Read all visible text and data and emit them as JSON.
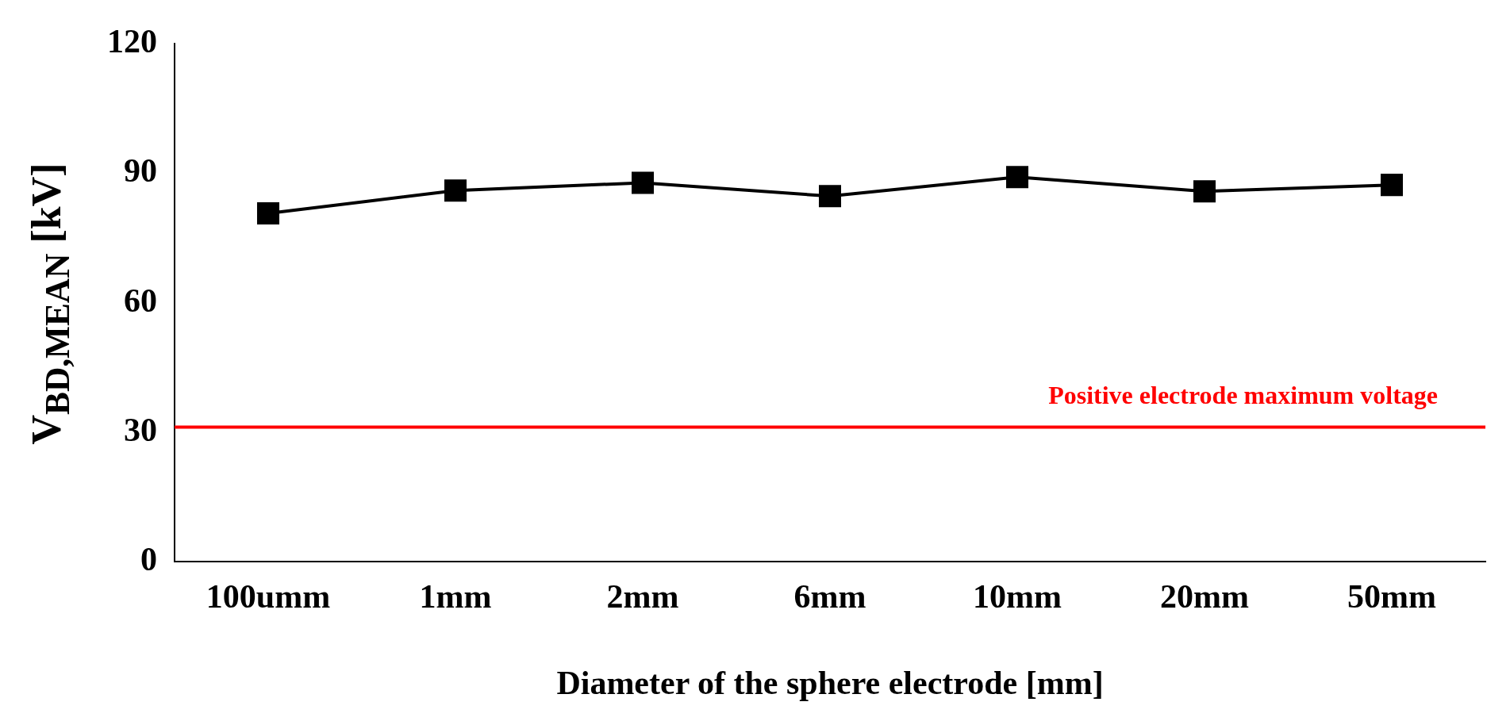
{
  "chart_data": {
    "type": "line",
    "xlabel": "Diameter of the sphere electrode [mm]",
    "ylabel": "V$_{BD,MEAN}$ [kV]",
    "categories": [
      "100umm",
      "1mm",
      "2mm",
      "6mm",
      "10mm",
      "20mm",
      "50mm"
    ],
    "series": [
      {
        "color": "#000000",
        "values": [
          80.7,
          86.0,
          87.8,
          84.7,
          89.1,
          85.8,
          87.3
        ]
      }
    ],
    "ylim": [
      0,
      120
    ],
    "yticks": [
      0,
      30,
      60,
      90,
      120
    ],
    "grid": false,
    "legend": false,
    "marker": "square",
    "line_style": "solid",
    "ref_lines": [
      {
        "axis": "y",
        "value": 31.2,
        "label": "Positive electrode maximum voltage",
        "color": "#ff0000"
      }
    ]
  }
}
